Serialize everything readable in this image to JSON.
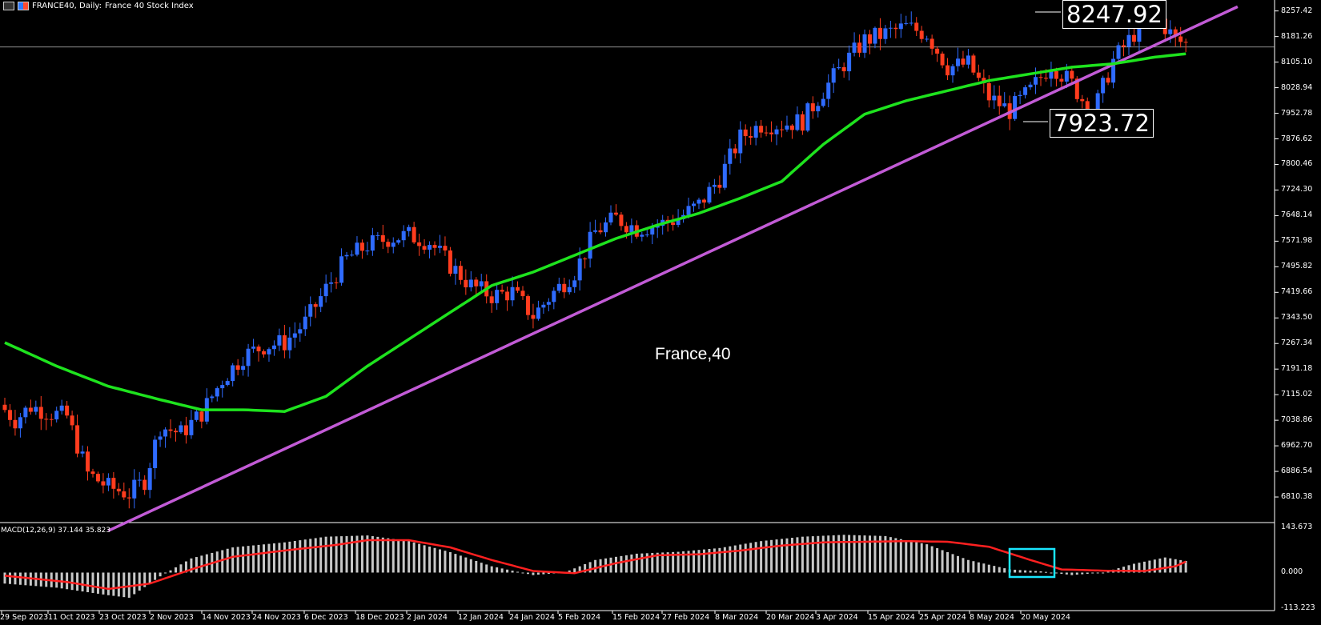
{
  "header": {
    "symbol": "FRANCE40, Daily:",
    "desc": "France 40 Stock Index"
  },
  "watermark": "France,40",
  "macd_label": "MACD(12,26,9) 37.144 35.823",
  "callouts": {
    "upper": "8247.92",
    "lower": "7923.72"
  },
  "price_axis": {
    "min": 6734.22,
    "max": 8290,
    "ticks": [
      "8257.42",
      "8181.26",
      "8105.10",
      "8028.94",
      "7952.78",
      "7876.62",
      "7800.46",
      "7724.30",
      "7648.14",
      "7571.98",
      "7495.82",
      "7419.66",
      "7343.50",
      "7267.34",
      "7191.18",
      "7115.02",
      "7038.86",
      "6962.70",
      "6886.54",
      "6810.38"
    ]
  },
  "macd_axis": {
    "min": -113.223,
    "max": 143.673,
    "ticks": [
      "143.673",
      "0.000",
      "-113.223"
    ]
  },
  "x_labels": [
    "29 Sep 2023",
    "11 Oct 2023",
    "23 Oct 2023",
    "2 Nov 2023",
    "14 Nov 2023",
    "24 Nov 2023",
    "6 Dec 2023",
    "18 Dec 2023",
    "2 Jan 2024",
    "12 Jan 2024",
    "24 Jan 2024",
    "5 Feb 2024",
    "15 Feb 2024",
    "27 Feb 2024",
    "8 Mar 2024",
    "20 Mar 2024",
    "3 Apr 2024",
    "15 Apr 2024",
    "25 Apr 2024",
    "8 May 2024",
    "20 May 2024"
  ],
  "chart_data": {
    "type": "candlestick",
    "close_anchors": [
      [
        0,
        7070
      ],
      [
        2,
        7040
      ],
      [
        5,
        7080
      ],
      [
        9,
        7060
      ],
      [
        12,
        7050
      ],
      [
        16,
        6880
      ],
      [
        20,
        6840
      ],
      [
        24,
        6820
      ],
      [
        27,
        6860
      ],
      [
        30,
        7020
      ],
      [
        34,
        7000
      ],
      [
        38,
        7060
      ],
      [
        42,
        7160
      ],
      [
        46,
        7230
      ],
      [
        50,
        7260
      ],
      [
        54,
        7270
      ],
      [
        58,
        7330
      ],
      [
        62,
        7430
      ],
      [
        66,
        7520
      ],
      [
        70,
        7560
      ],
      [
        74,
        7580
      ],
      [
        78,
        7590
      ],
      [
        82,
        7570
      ],
      [
        86,
        7500
      ],
      [
        90,
        7440
      ],
      [
        94,
        7410
      ],
      [
        98,
        7420
      ],
      [
        102,
        7350
      ],
      [
        106,
        7420
      ],
      [
        110,
        7480
      ],
      [
        114,
        7600
      ],
      [
        118,
        7640
      ],
      [
        122,
        7610
      ],
      [
        126,
        7620
      ],
      [
        130,
        7640
      ],
      [
        134,
        7680
      ],
      [
        138,
        7760
      ],
      [
        142,
        7880
      ],
      [
        146,
        7920
      ],
      [
        150,
        7920
      ],
      [
        154,
        7930
      ],
      [
        158,
        8020
      ],
      [
        162,
        8100
      ],
      [
        166,
        8170
      ],
      [
        170,
        8190
      ],
      [
        174,
        8210
      ],
      [
        178,
        8190
      ],
      [
        182,
        8090
      ],
      [
        186,
        8100
      ],
      [
        190,
        8000
      ],
      [
        194,
        7960
      ],
      [
        198,
        8020
      ],
      [
        202,
        8100
      ],
      [
        206,
        8040
      ],
      [
        210,
        7950
      ],
      [
        214,
        8110
      ],
      [
        218,
        8190
      ],
      [
        222,
        8250
      ],
      [
        226,
        8170
      ],
      [
        228,
        8160
      ]
    ],
    "ma_points": [
      [
        0,
        7270
      ],
      [
        10,
        7200
      ],
      [
        20,
        7140
      ],
      [
        30,
        7100
      ],
      [
        38,
        7070
      ],
      [
        46,
        7070
      ],
      [
        54,
        7065
      ],
      [
        62,
        7110
      ],
      [
        70,
        7200
      ],
      [
        78,
        7280
      ],
      [
        86,
        7360
      ],
      [
        94,
        7440
      ],
      [
        102,
        7480
      ],
      [
        110,
        7530
      ],
      [
        118,
        7580
      ],
      [
        126,
        7620
      ],
      [
        134,
        7655
      ],
      [
        142,
        7700
      ],
      [
        150,
        7750
      ],
      [
        158,
        7860
      ],
      [
        166,
        7950
      ],
      [
        174,
        7990
      ],
      [
        182,
        8020
      ],
      [
        190,
        8050
      ],
      [
        198,
        8070
      ],
      [
        206,
        8090
      ],
      [
        214,
        8100
      ],
      [
        222,
        8120
      ],
      [
        228,
        8130
      ]
    ],
    "trendline": {
      "from": [
        20,
        6710
      ],
      "to": [
        238,
        8270
      ]
    },
    "horizontal_line": 8150,
    "macd_signal": [
      [
        0,
        -10
      ],
      [
        12,
        -30
      ],
      [
        20,
        -52
      ],
      [
        28,
        -35
      ],
      [
        36,
        10
      ],
      [
        44,
        50
      ],
      [
        54,
        70
      ],
      [
        64,
        88
      ],
      [
        70,
        103
      ],
      [
        78,
        103
      ],
      [
        86,
        80
      ],
      [
        94,
        40
      ],
      [
        102,
        5
      ],
      [
        110,
        -2
      ],
      [
        118,
        30
      ],
      [
        126,
        55
      ],
      [
        134,
        58
      ],
      [
        142,
        70
      ],
      [
        150,
        86
      ],
      [
        158,
        96
      ],
      [
        166,
        98
      ],
      [
        174,
        100
      ],
      [
        182,
        98
      ],
      [
        190,
        82
      ],
      [
        198,
        40
      ],
      [
        204,
        10
      ],
      [
        212,
        6
      ],
      [
        220,
        5
      ],
      [
        226,
        20
      ],
      [
        228,
        35
      ]
    ],
    "macd_hist": [
      [
        0,
        -35
      ],
      [
        10,
        -48
      ],
      [
        20,
        -72
      ],
      [
        24,
        -80
      ],
      [
        30,
        -12
      ],
      [
        36,
        45
      ],
      [
        44,
        80
      ],
      [
        54,
        96
      ],
      [
        62,
        114
      ],
      [
        70,
        118
      ],
      [
        78,
        100
      ],
      [
        86,
        65
      ],
      [
        94,
        20
      ],
      [
        102,
        -8
      ],
      [
        108,
        0
      ],
      [
        114,
        40
      ],
      [
        122,
        60
      ],
      [
        130,
        66
      ],
      [
        138,
        78
      ],
      [
        146,
        100
      ],
      [
        154,
        114
      ],
      [
        162,
        120
      ],
      [
        170,
        116
      ],
      [
        178,
        90
      ],
      [
        186,
        40
      ],
      [
        194,
        10
      ],
      [
        200,
        4
      ],
      [
        206,
        -8
      ],
      [
        212,
        0
      ],
      [
        218,
        28
      ],
      [
        224,
        48
      ],
      [
        228,
        37
      ]
    ]
  }
}
